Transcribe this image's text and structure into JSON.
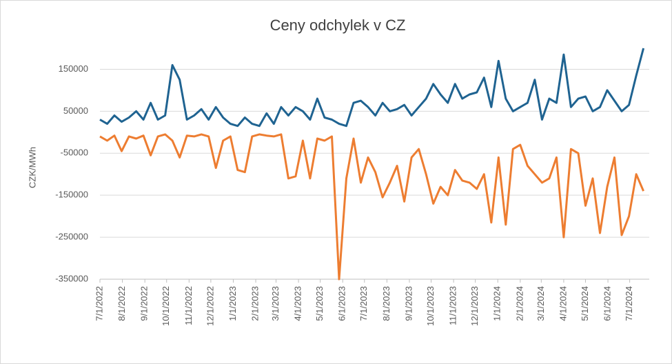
{
  "chart_data": {
    "type": "line",
    "title": "Ceny odchylek v CZ",
    "y_label": "CZK/MWh",
    "grid": true,
    "ylim": [
      -350000,
      200000
    ],
    "yticks": [
      -350000,
      -250000,
      -150000,
      -50000,
      50000,
      150000
    ],
    "xlim": [
      "2022-07-01",
      "2024-07-28"
    ],
    "xticks": [
      {
        "value": "2022-07-01",
        "label": "7/1/2022"
      },
      {
        "value": "2022-08-01",
        "label": "8/1/2022"
      },
      {
        "value": "2022-09-01",
        "label": "9/1/2022"
      },
      {
        "value": "2022-10-01",
        "label": "10/1/2022"
      },
      {
        "value": "2022-11-01",
        "label": "11/1/2022"
      },
      {
        "value": "2022-12-01",
        "label": "12/1/2022"
      },
      {
        "value": "2023-01-01",
        "label": "1/1/2023"
      },
      {
        "value": "2023-02-01",
        "label": "2/1/2023"
      },
      {
        "value": "2023-03-01",
        "label": "3/1/2023"
      },
      {
        "value": "2023-04-01",
        "label": "4/1/2023"
      },
      {
        "value": "2023-05-01",
        "label": "5/1/2023"
      },
      {
        "value": "2023-06-01",
        "label": "6/1/2023"
      },
      {
        "value": "2023-07-01",
        "label": "7/1/2023"
      },
      {
        "value": "2023-08-01",
        "label": "8/1/2023"
      },
      {
        "value": "2023-09-01",
        "label": "9/1/2023"
      },
      {
        "value": "2023-10-01",
        "label": "10/1/2023"
      },
      {
        "value": "2023-11-01",
        "label": "11/1/2023"
      },
      {
        "value": "2023-12-01",
        "label": "12/1/2023"
      },
      {
        "value": "2024-01-01",
        "label": "1/1/2024"
      },
      {
        "value": "2024-02-01",
        "label": "2/1/2024"
      },
      {
        "value": "2024-03-01",
        "label": "3/1/2024"
      },
      {
        "value": "2024-04-01",
        "label": "4/1/2024"
      },
      {
        "value": "2024-05-01",
        "label": "5/1/2024"
      },
      {
        "value": "2024-06-01",
        "label": "6/1/2024"
      },
      {
        "value": "2024-07-01",
        "label": "7/1/2024"
      }
    ],
    "x": [
      "2022-07-01",
      "2022-07-11",
      "2022-07-21",
      "2022-07-31",
      "2022-08-10",
      "2022-08-20",
      "2022-08-30",
      "2022-09-09",
      "2022-09-19",
      "2022-09-29",
      "2022-10-09",
      "2022-10-19",
      "2022-10-29",
      "2022-11-08",
      "2022-11-18",
      "2022-11-28",
      "2022-12-08",
      "2022-12-18",
      "2022-12-28",
      "2023-01-07",
      "2023-01-17",
      "2023-01-27",
      "2023-02-06",
      "2023-02-16",
      "2023-02-26",
      "2023-03-08",
      "2023-03-18",
      "2023-03-28",
      "2023-04-07",
      "2023-04-17",
      "2023-04-27",
      "2023-05-07",
      "2023-05-17",
      "2023-05-27",
      "2023-06-06",
      "2023-06-16",
      "2023-06-26",
      "2023-07-06",
      "2023-07-16",
      "2023-07-26",
      "2023-08-05",
      "2023-08-15",
      "2023-08-25",
      "2023-09-04",
      "2023-09-14",
      "2023-09-24",
      "2023-10-04",
      "2023-10-14",
      "2023-10-24",
      "2023-11-03",
      "2023-11-13",
      "2023-11-23",
      "2023-12-03",
      "2023-12-13",
      "2023-12-23",
      "2024-01-02",
      "2024-01-12",
      "2024-01-22",
      "2024-02-01",
      "2024-02-11",
      "2024-02-21",
      "2024-03-02",
      "2024-03-12",
      "2024-03-22",
      "2024-04-01",
      "2024-04-11",
      "2024-04-21",
      "2024-05-01",
      "2024-05-11",
      "2024-05-21",
      "2024-05-31",
      "2024-06-10",
      "2024-06-20",
      "2024-06-30",
      "2024-07-10",
      "2024-07-20"
    ],
    "series": [
      {
        "color": "#1f6391",
        "values": [
          30000,
          20000,
          40000,
          25000,
          35000,
          50000,
          30000,
          70000,
          30000,
          40000,
          160000,
          125000,
          30000,
          40000,
          55000,
          30000,
          60000,
          35000,
          20000,
          15000,
          35000,
          20000,
          15000,
          45000,
          20000,
          60000,
          40000,
          60000,
          50000,
          30000,
          80000,
          35000,
          30000,
          20000,
          15000,
          70000,
          75000,
          60000,
          40000,
          70000,
          50000,
          55000,
          65000,
          40000,
          60000,
          80000,
          115000,
          90000,
          70000,
          115000,
          80000,
          90000,
          95000,
          130000,
          60000,
          170000,
          80000,
          50000,
          60000,
          70000,
          125000,
          30000,
          80000,
          70000,
          185000,
          60000,
          80000,
          85000,
          50000,
          60000,
          100000,
          75000,
          50000,
          65000,
          135000,
          200000
        ]
      },
      {
        "color": "#ed7d31",
        "values": [
          -10000,
          -20000,
          -8000,
          -45000,
          -10000,
          -15000,
          -8000,
          -55000,
          -10000,
          -5000,
          -20000,
          -60000,
          -8000,
          -10000,
          -5000,
          -10000,
          -85000,
          -20000,
          -10000,
          -90000,
          -95000,
          -10000,
          -5000,
          -8000,
          -10000,
          -5000,
          -110000,
          -105000,
          -20000,
          -110000,
          -15000,
          -20000,
          -10000,
          -350000,
          -110000,
          -15000,
          -120000,
          -60000,
          -95000,
          -155000,
          -120000,
          -80000,
          -165000,
          -60000,
          -40000,
          -100000,
          -170000,
          -130000,
          -150000,
          -90000,
          -115000,
          -120000,
          -135000,
          -100000,
          -215000,
          -60000,
          -220000,
          -40000,
          -30000,
          -80000,
          -100000,
          -120000,
          -110000,
          -60000,
          -250000,
          -40000,
          -50000,
          -175000,
          -110000,
          -240000,
          -130000,
          -60000,
          -245000,
          -200000,
          -100000,
          -140000
        ]
      }
    ]
  }
}
